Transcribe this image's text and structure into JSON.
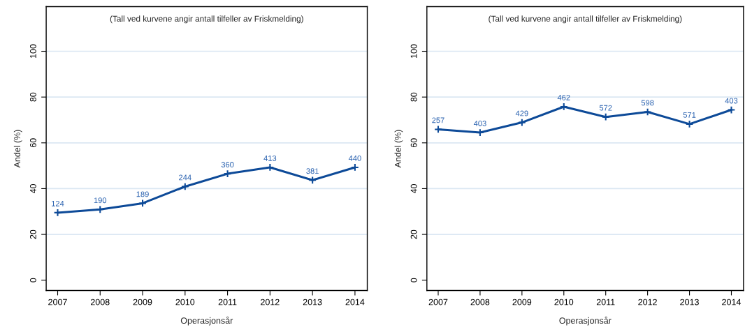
{
  "chart_data": [
    {
      "type": "line",
      "xlabel": "Operasjonsår",
      "ylabel": "Andel (%)",
      "annotations": [
        "(Tall ved kurvene angir antall tilfeller av Friskmelding)",
        {
          "text": "124",
          "x": 2007,
          "y": 29.5
        },
        {
          "text": "190",
          "x": 2008,
          "y": 30.9
        },
        {
          "text": "189",
          "x": 2009,
          "y": 33.6
        },
        {
          "text": "244",
          "x": 2010,
          "y": 40.9
        },
        {
          "text": "360",
          "x": 2011,
          "y": 46.5
        },
        {
          "text": "413",
          "x": 2012,
          "y": 49.3
        },
        {
          "text": "381",
          "x": 2013,
          "y": 43.7
        },
        {
          "text": "440",
          "x": 2014,
          "y": 49.3
        }
      ],
      "x": [
        2007,
        2008,
        2009,
        2010,
        2011,
        2012,
        2013,
        2014
      ],
      "series": [
        {
          "color": "#0d4a98",
          "values": [
            29.5,
            30.9,
            33.6,
            40.9,
            46.5,
            49.3,
            43.7,
            49.3
          ]
        }
      ],
      "xlim": [
        2006.73,
        2014.29
      ],
      "xticks": [
        2007,
        2008,
        2009,
        2010,
        2011,
        2012,
        2013,
        2014
      ],
      "ylim": [
        -4.5,
        119.5
      ],
      "yticks": [
        0,
        20,
        40,
        60,
        80,
        100
      ],
      "ref_lines": [
        {
          "axis": "y",
          "value": 20,
          "color": "#dbe7f3"
        },
        {
          "axis": "y",
          "value": 40,
          "color": "#dbe7f3"
        },
        {
          "axis": "y",
          "value": 60,
          "color": "#dbe7f3"
        },
        {
          "axis": "y",
          "value": 80,
          "color": "#dbe7f3"
        },
        {
          "axis": "y",
          "value": 100,
          "color": "#dbe7f3"
        }
      ],
      "marker": "cross",
      "line_style": "solid",
      "grid": false,
      "legend": false
    },
    {
      "type": "line",
      "xlabel": "Operasjonsår",
      "ylabel": "Andel (%)",
      "annotations": [
        "(Tall ved kurvene angir antall tilfeller av Friskmelding)",
        {
          "text": "257",
          "x": 2007,
          "y": 65.9
        },
        {
          "text": "403",
          "x": 2008,
          "y": 64.5
        },
        {
          "text": "429",
          "x": 2009,
          "y": 68.9
        },
        {
          "text": "462",
          "x": 2010,
          "y": 75.8
        },
        {
          "text": "572",
          "x": 2011,
          "y": 71.3
        },
        {
          "text": "598",
          "x": 2012,
          "y": 73.5
        },
        {
          "text": "571",
          "x": 2013,
          "y": 68.2
        },
        {
          "text": "403",
          "x": 2014,
          "y": 74.4
        }
      ],
      "x": [
        2007,
        2008,
        2009,
        2010,
        2011,
        2012,
        2013,
        2014
      ],
      "series": [
        {
          "color": "#0d4a98",
          "values": [
            65.9,
            64.5,
            68.9,
            75.8,
            71.3,
            73.5,
            68.2,
            74.4
          ]
        }
      ],
      "xlim": [
        2006.73,
        2014.29
      ],
      "xticks": [
        2007,
        2008,
        2009,
        2010,
        2011,
        2012,
        2013,
        2014
      ],
      "ylim": [
        -4.5,
        119.5
      ],
      "yticks": [
        0,
        20,
        40,
        60,
        80,
        100
      ],
      "ref_lines": [
        {
          "axis": "y",
          "value": 20,
          "color": "#dbe7f3"
        },
        {
          "axis": "y",
          "value": 40,
          "color": "#dbe7f3"
        },
        {
          "axis": "y",
          "value": 60,
          "color": "#dbe7f3"
        },
        {
          "axis": "y",
          "value": 80,
          "color": "#dbe7f3"
        },
        {
          "axis": "y",
          "value": 100,
          "color": "#dbe7f3"
        }
      ],
      "marker": "cross",
      "line_style": "solid",
      "grid": false,
      "legend": false
    }
  ]
}
